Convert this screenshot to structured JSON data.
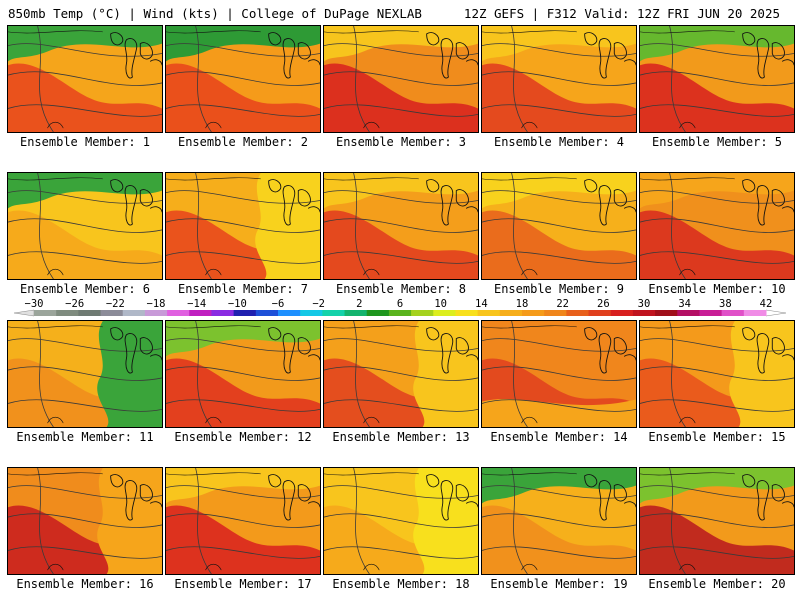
{
  "header": {
    "left": "850mb Temp (°C) | Wind (kts) | College of DuPage NEXLAB",
    "right": "12Z GEFS | F312 Valid: 12Z FRI JUN 20 2025"
  },
  "members": [
    {
      "label": "Ensemble Member: 1",
      "bg": "#f5a51b",
      "warm": "#e8431c",
      "cool": "#3aa43a",
      "coolSide": "top"
    },
    {
      "label": "Ensemble Member: 2",
      "bg": "#f59b1a",
      "warm": "#e8431c",
      "cool": "#2e9a35",
      "coolSide": "top"
    },
    {
      "label": "Ensemble Member: 3",
      "bg": "#f08c1c",
      "warm": "#d8201f",
      "cool": "#f7c51d",
      "coolSide": "top"
    },
    {
      "label": "Ensemble Member: 4",
      "bg": "#f6a51b",
      "warm": "#e03a1e",
      "cool": "#f8c51d",
      "coolSide": "top"
    },
    {
      "label": "Ensemble Member: 5",
      "bg": "#f29a1b",
      "warm": "#d8201f",
      "cool": "#66b82e",
      "coolSide": "top"
    },
    {
      "label": "Ensemble Member: 6",
      "bg": "#f8c51d",
      "warm": "#f6a51b",
      "cool": "#3aa43a",
      "coolSide": "top"
    },
    {
      "label": "Ensemble Member: 7",
      "bg": "#f6ae1b",
      "warm": "#e8431c",
      "cool": "#f8d21d",
      "coolSide": "right"
    },
    {
      "label": "Ensemble Member: 8",
      "bg": "#f49e1b",
      "warm": "#e03a1e",
      "cool": "#f8c51d",
      "coolSide": "top"
    },
    {
      "label": "Ensemble Member: 9",
      "bg": "#f6b01b",
      "warm": "#e8601c",
      "cool": "#f8d21d",
      "coolSide": "top"
    },
    {
      "label": "Ensemble Member: 10",
      "bg": "#f0901c",
      "warm": "#d82a1f",
      "cool": "#f6a51b",
      "coolSide": "top"
    },
    {
      "label": "Ensemble Member: 11",
      "bg": "#f5b01b",
      "warm": "#f08c1c",
      "cool": "#3aa43a",
      "coolSide": "right"
    },
    {
      "label": "Ensemble Member: 12",
      "bg": "#f29a1b",
      "warm": "#e0301e",
      "cool": "#7cc22e",
      "coolSide": "top"
    },
    {
      "label": "Ensemble Member: 13",
      "bg": "#f4a01b",
      "warm": "#e0401e",
      "cool": "#f8c51d",
      "coolSide": "right"
    },
    {
      "label": "Ensemble Member: 14",
      "bg": "#f0861c",
      "warm": "#e0401e",
      "cool": "#f6a51b",
      "coolSide": "bottom"
    },
    {
      "label": "Ensemble Member: 15",
      "bg": "#f49a1b",
      "warm": "#e8501c",
      "cool": "#f8c51d",
      "coolSide": "right"
    },
    {
      "label": "Ensemble Member: 16",
      "bg": "#f08c1c",
      "warm": "#c81a1f",
      "cool": "#f6a51b",
      "coolSide": "right"
    },
    {
      "label": "Ensemble Member: 17",
      "bg": "#f39a1b",
      "warm": "#d8201f",
      "cool": "#f8c51d",
      "coolSide": "top"
    },
    {
      "label": "Ensemble Member: 18",
      "bg": "#f8c51d",
      "warm": "#f6a51b",
      "cool": "#f8e01d",
      "coolSide": "right"
    },
    {
      "label": "Ensemble Member: 19",
      "bg": "#f6b01b",
      "warm": "#f08c1c",
      "cool": "#3aa43a",
      "coolSide": "top"
    },
    {
      "label": "Ensemble Member: 20",
      "bg": "#f29a1b",
      "warm": "#b8181f",
      "cool": "#7cc22e",
      "coolSide": "top"
    }
  ],
  "colorbar": {
    "ticks": [
      "-30",
      "-26",
      "-22",
      "-18",
      "-14",
      "-10",
      "-6",
      "-2",
      "2",
      "6",
      "10",
      "14",
      "18",
      "22",
      "26",
      "30",
      "34",
      "38",
      "42"
    ],
    "colors": [
      "#9ba59b",
      "#7f8c7f",
      "#6f7b73",
      "#8c8c99",
      "#b0b8c8",
      "#c89ad8",
      "#e060e0",
      "#c020c0",
      "#8a2be2",
      "#2020b0",
      "#1e50d8",
      "#1e90ff",
      "#14c8e6",
      "#14d2aa",
      "#14b46e",
      "#1e961e",
      "#5ab41e",
      "#a5d21e",
      "#dcee1e",
      "#f8e01d",
      "#f8c51d",
      "#f6ae1b",
      "#f59b1a",
      "#f0861c",
      "#e8601c",
      "#e0401e",
      "#d8201f",
      "#c0141f",
      "#a00f1a",
      "#b40f64",
      "#c81e96",
      "#e050c8",
      "#f08ce6"
    ]
  }
}
